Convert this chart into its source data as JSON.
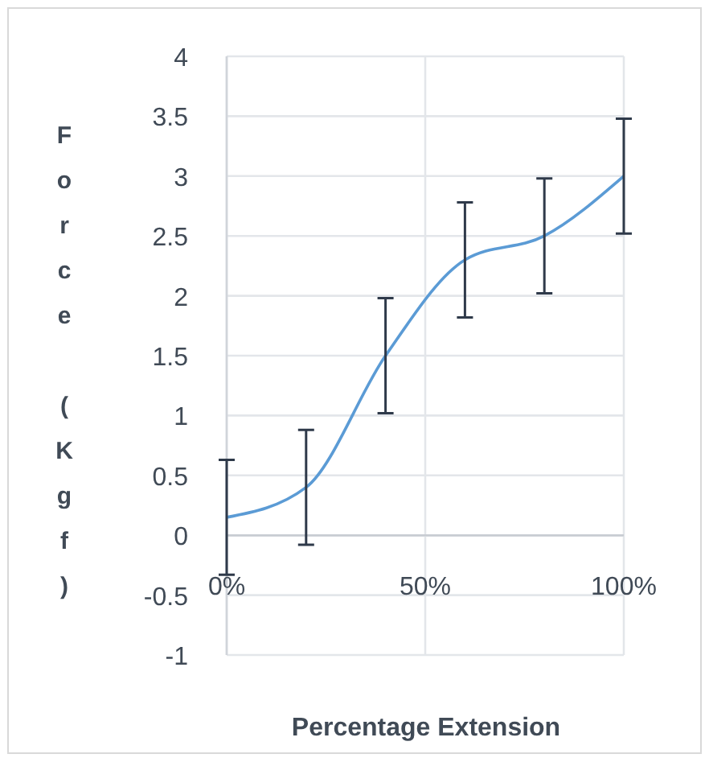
{
  "chart_data": {
    "type": "line",
    "xlabel": "Percentage Extension",
    "ylabel": "Force (Kgf)",
    "x": [
      0,
      20,
      40,
      60,
      80,
      100
    ],
    "series": [
      {
        "color": "#5b9bd5",
        "values": [
          0.15,
          0.4,
          1.5,
          2.3,
          2.5,
          3.0
        ],
        "errors": [
          0.48,
          0.48,
          0.48,
          0.48,
          0.48,
          0.48
        ]
      }
    ],
    "xlim": [
      0,
      100
    ],
    "xticks": [
      {
        "value": 0,
        "label": "0%"
      },
      {
        "value": 50,
        "label": "50%"
      },
      {
        "value": 100,
        "label": "100%"
      }
    ],
    "ylim": [
      -1,
      4
    ],
    "yticks": [
      -1,
      -0.5,
      0,
      0.5,
      1,
      1.5,
      2,
      2.5,
      3,
      3.5,
      4
    ],
    "grid": true,
    "marker": "none",
    "line_style": "solid"
  }
}
